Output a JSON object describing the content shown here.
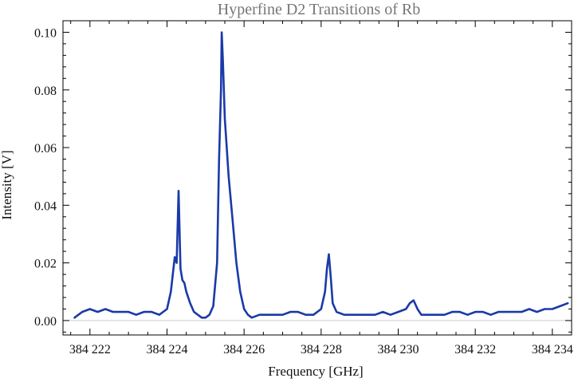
{
  "chart_data": {
    "type": "line",
    "title": "Hyperfine D2 Transitions of Rb",
    "xlabel": "Frequency [GHz]",
    "ylabel": "Intensity [V]",
    "xlim": [
      384221.3,
      384234.5
    ],
    "ylim": [
      -0.005,
      0.104
    ],
    "x_ticks": [
      {
        "value": 384222,
        "label": "384 222"
      },
      {
        "value": 384224,
        "label": "384 224"
      },
      {
        "value": 384226,
        "label": "384 226"
      },
      {
        "value": 384228,
        "label": "384 228"
      },
      {
        "value": 384230,
        "label": "384 230"
      },
      {
        "value": 384232,
        "label": "384 232"
      },
      {
        "value": 384234,
        "label": "384 234"
      }
    ],
    "y_ticks": [
      {
        "value": 0.0,
        "label": "0.00"
      },
      {
        "value": 0.02,
        "label": "0.02"
      },
      {
        "value": 0.04,
        "label": "0.04"
      },
      {
        "value": 0.06,
        "label": "0.06"
      },
      {
        "value": 0.08,
        "label": "0.08"
      },
      {
        "value": 0.1,
        "label": "0.10"
      }
    ],
    "grid": false,
    "series_color": "#1a3aa8",
    "series": [
      {
        "x": [
          384221.6,
          384221.8,
          384222.0,
          384222.2,
          384222.4,
          384222.6,
          384222.8,
          384223.0,
          384223.2,
          384223.4,
          384223.6,
          384223.8,
          384224.0,
          384224.1,
          384224.2,
          384224.25,
          384224.3,
          384224.35,
          384224.4,
          384224.45,
          384224.5,
          384224.6,
          384224.7,
          384224.8,
          384224.9,
          384225.0,
          384225.1,
          384225.2,
          384225.3,
          384225.35,
          384225.4,
          384225.42,
          384225.45,
          384225.5,
          384225.55,
          384225.6,
          384225.7,
          384225.8,
          384225.9,
          384226.0,
          384226.1,
          384226.2,
          384226.4,
          384226.6,
          384226.8,
          384227.0,
          384227.2,
          384227.4,
          384227.6,
          384227.8,
          384228.0,
          384228.1,
          384228.15,
          384228.2,
          384228.25,
          384228.3,
          384228.4,
          384228.6,
          384228.8,
          384229.0,
          384229.2,
          384229.4,
          384229.6,
          384229.8,
          384230.0,
          384230.2,
          384230.3,
          384230.4,
          384230.5,
          384230.6,
          384230.8,
          384231.0,
          384231.2,
          384231.4,
          384231.6,
          384231.8,
          384232.0,
          384232.2,
          384232.4,
          384232.6,
          384232.8,
          384233.0,
          384233.2,
          384233.4,
          384233.6,
          384233.8,
          384234.0,
          384234.2,
          384234.4
        ],
        "values": [
          0.001,
          0.003,
          0.004,
          0.003,
          0.004,
          0.003,
          0.003,
          0.003,
          0.002,
          0.003,
          0.003,
          0.002,
          0.004,
          0.01,
          0.022,
          0.02,
          0.045,
          0.018,
          0.014,
          0.013,
          0.01,
          0.006,
          0.003,
          0.002,
          0.001,
          0.001,
          0.002,
          0.005,
          0.02,
          0.055,
          0.08,
          0.1,
          0.09,
          0.07,
          0.06,
          0.05,
          0.035,
          0.02,
          0.01,
          0.004,
          0.002,
          0.001,
          0.002,
          0.002,
          0.002,
          0.002,
          0.003,
          0.003,
          0.002,
          0.002,
          0.004,
          0.01,
          0.018,
          0.023,
          0.015,
          0.006,
          0.003,
          0.002,
          0.002,
          0.002,
          0.002,
          0.002,
          0.003,
          0.002,
          0.003,
          0.004,
          0.006,
          0.007,
          0.004,
          0.002,
          0.002,
          0.002,
          0.002,
          0.003,
          0.003,
          0.002,
          0.003,
          0.003,
          0.002,
          0.003,
          0.003,
          0.003,
          0.003,
          0.004,
          0.003,
          0.004,
          0.004,
          0.005,
          0.006
        ]
      }
    ]
  }
}
